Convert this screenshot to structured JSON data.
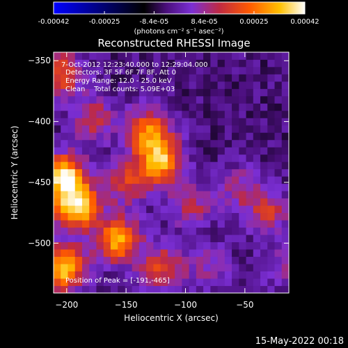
{
  "colorbar": {
    "ticks": [
      "-0.00042",
      "-0.00025",
      "-8.4e-05",
      "8.4e-05",
      "0.00025",
      "0.00042"
    ],
    "tick_values": [
      -0.00042,
      -0.00025,
      -8.4e-05,
      8.4e-05,
      0.00025,
      0.00042
    ],
    "range": [
      -0.00042,
      0.00042
    ],
    "units": "(photons cm⁻² s⁻¹ asec⁻²)"
  },
  "plot": {
    "title": "Reconstructed RHESSI Image",
    "time_range": "7-Oct-2012 12:23:40.000 to 12:29:04.000",
    "detectors": "Detectors: 3F 5F 6F 7F 8F, Att 0",
    "energy": "Energy Range: 12.0 - 25.0 keV",
    "method": "Clean    Total counts: 5.09E+03",
    "peak": "Position of Peak = [-191,-465]"
  },
  "footer": {
    "date": "15-May-2022 00:18"
  },
  "chart_data": {
    "type": "heatmap",
    "title": "Reconstructed RHESSI Image",
    "xlabel": "Heliocentric X (arcsec)",
    "ylabel": "Heliocentric Y (arcsec)",
    "xlim": [
      -211,
      -13
    ],
    "ylim": [
      -541,
      -343
    ],
    "x_ticks": [
      -200,
      -150,
      -100,
      -50
    ],
    "y_ticks": [
      -500,
      -450,
      -400,
      -350
    ],
    "x_tick_labels": [
      "−200",
      "−150",
      "−100",
      "−50"
    ],
    "y_tick_labels": [
      "−500",
      "−450",
      "−400",
      "−350"
    ],
    "colormap": [
      "#0000ff",
      "#000000",
      "#4b0f7d",
      "#7b2fd4",
      "#c02a42",
      "#ff5a00",
      "#ffc000",
      "#ffffff"
    ],
    "hotspots": [
      {
        "x": -203,
        "y": -445,
        "intensity": 0.00042
      },
      {
        "x": -205,
        "y": -360,
        "intensity": 0.00025
      },
      {
        "x": -192,
        "y": -470,
        "intensity": 0.00042
      },
      {
        "x": -157,
        "y": -497,
        "intensity": 0.00035
      },
      {
        "x": -203,
        "y": -520,
        "intensity": 0.0004
      },
      {
        "x": -121,
        "y": -433,
        "intensity": 0.00036
      },
      {
        "x": -131,
        "y": -408,
        "intensity": 0.0003
      },
      {
        "x": -150,
        "y": -450,
        "intensity": 0.0002
      },
      {
        "x": -178,
        "y": -397,
        "intensity": 0.00018
      },
      {
        "x": -95,
        "y": -470,
        "intensity": 0.00016
      },
      {
        "x": -55,
        "y": -455,
        "intensity": 0.00014
      },
      {
        "x": -30,
        "y": -475,
        "intensity": 0.00018
      },
      {
        "x": -120,
        "y": -520,
        "intensity": 0.00022
      },
      {
        "x": -80,
        "y": -520,
        "intensity": 0.00012
      },
      {
        "x": -20,
        "y": -520,
        "intensity": 0.0001
      }
    ]
  }
}
